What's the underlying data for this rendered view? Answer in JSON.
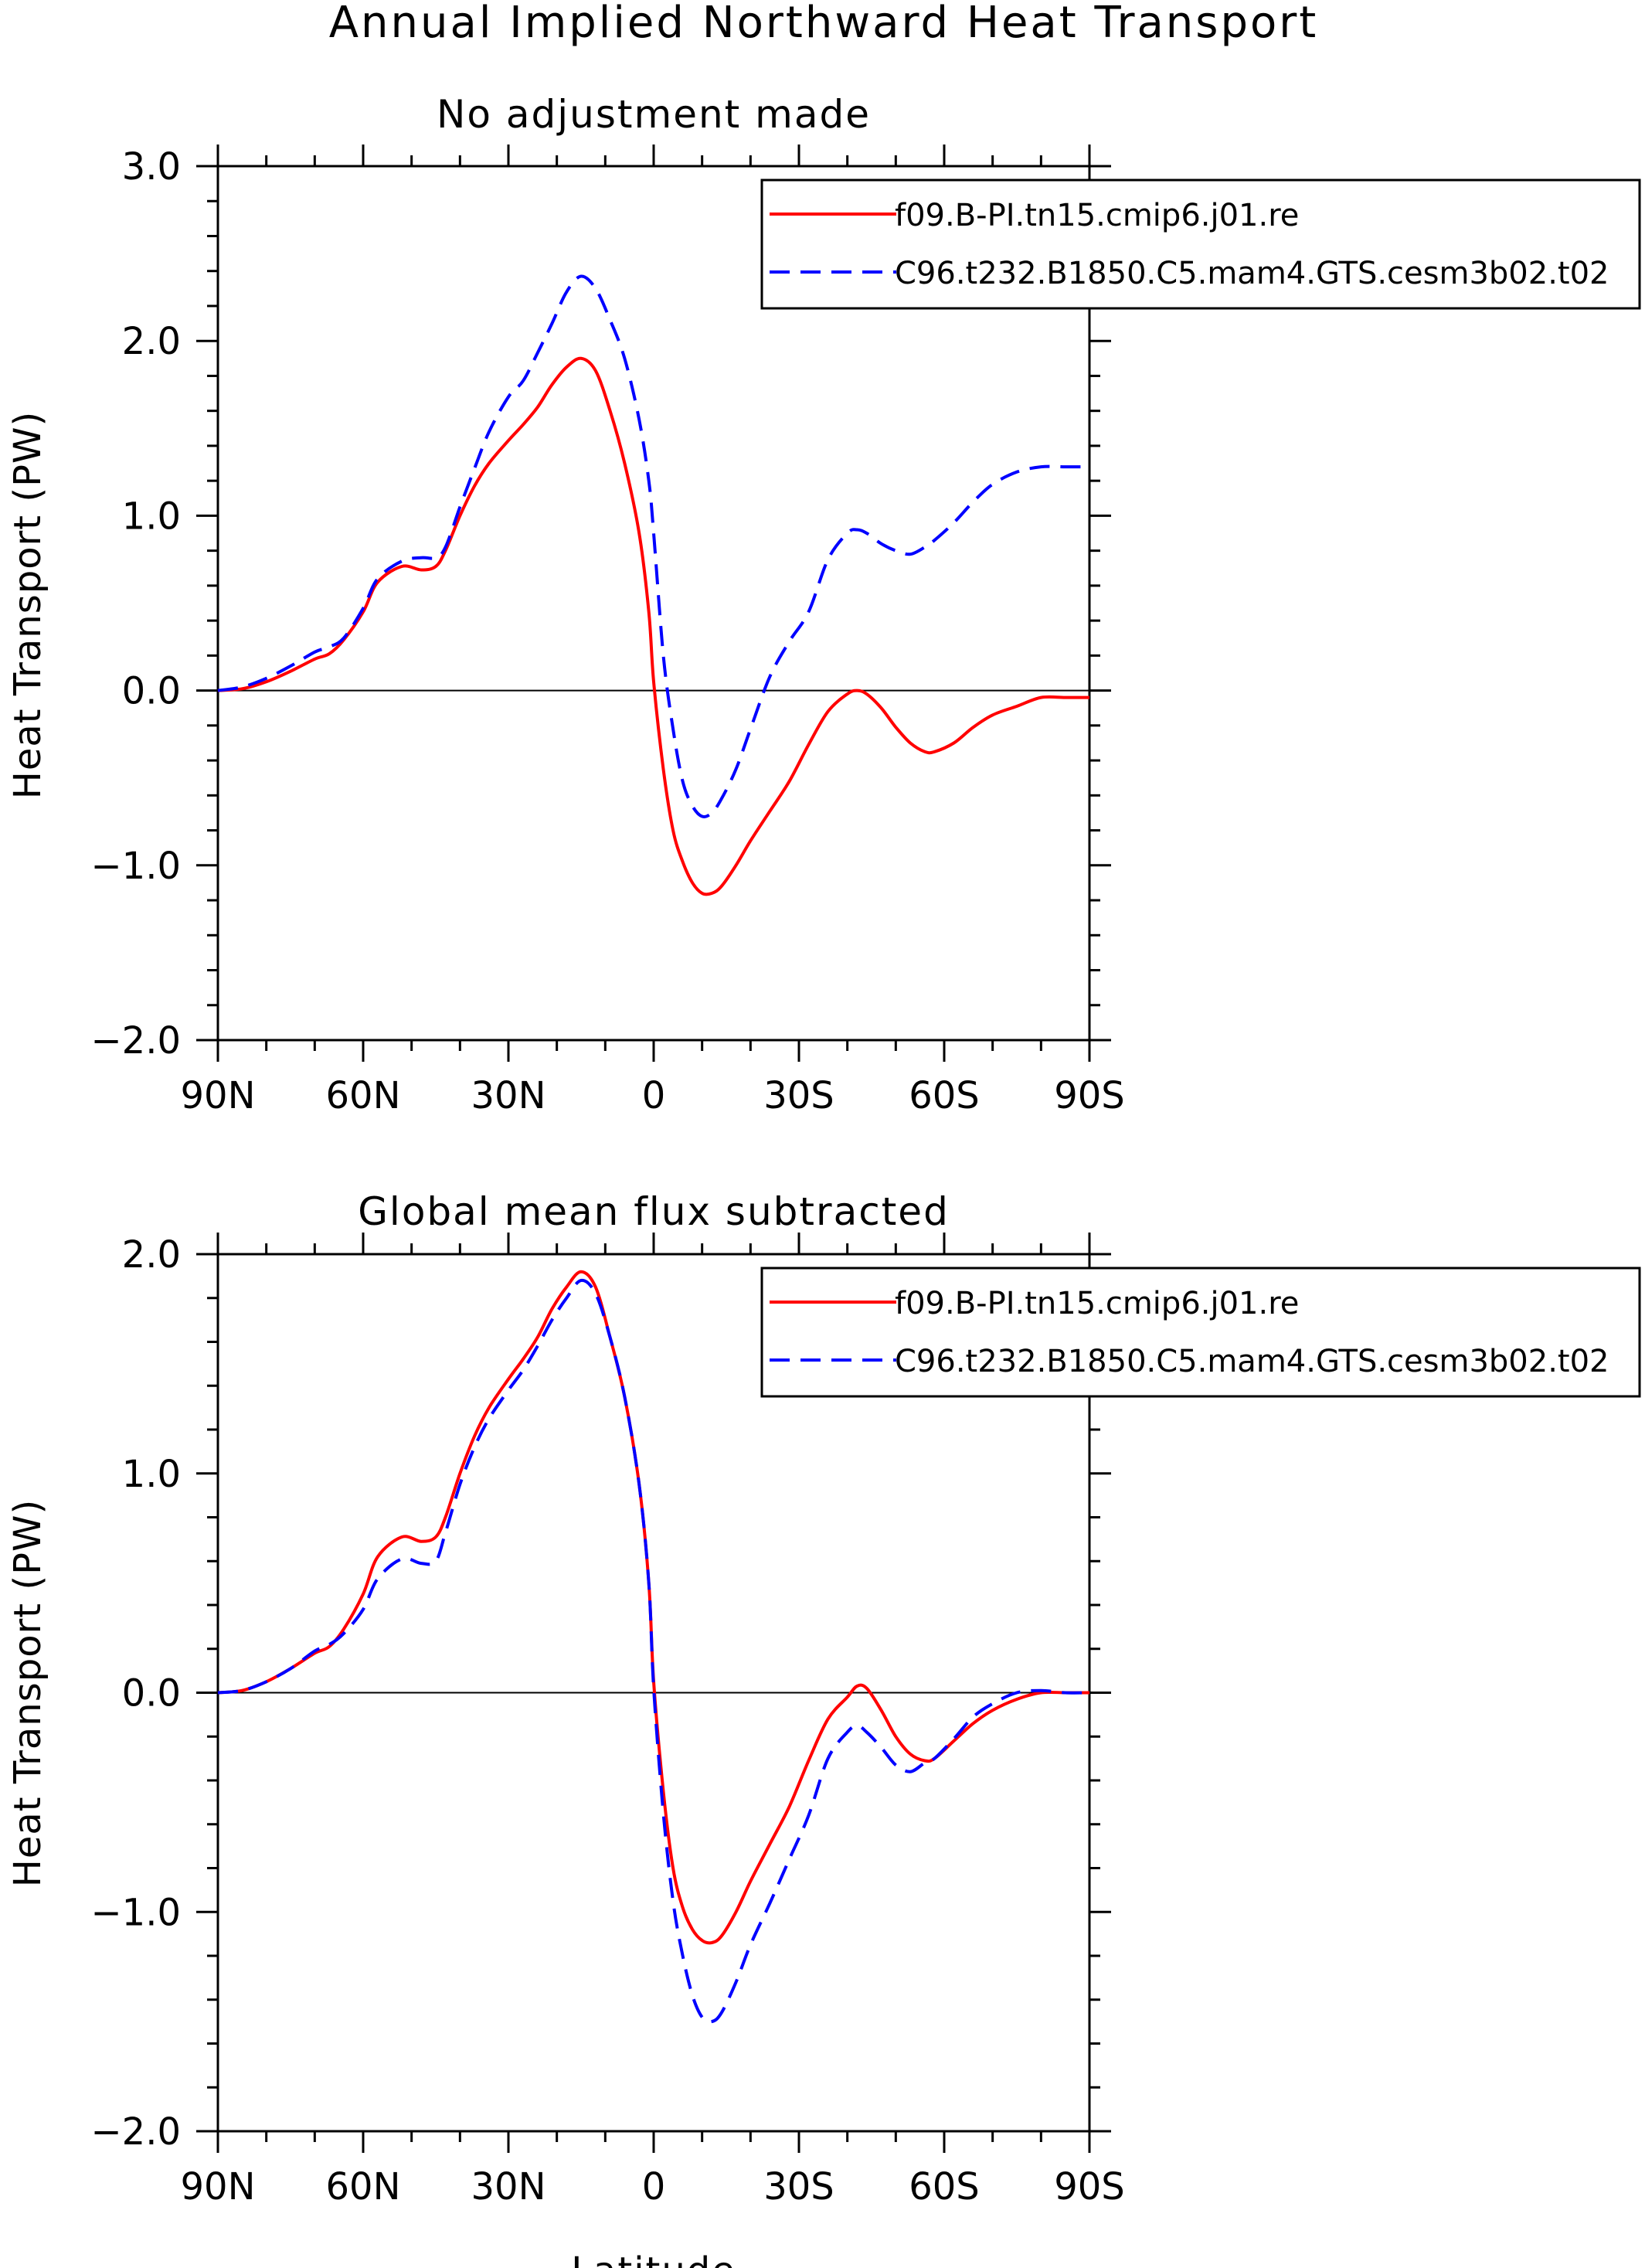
{
  "figure": {
    "title": "Annual Implied Northward Heat Transport"
  },
  "legend_entries": [
    {
      "name": "f09.B-PI.tn15.cmip6.j01.re",
      "color": "#ff0000",
      "dash": "solid"
    },
    {
      "name": "C96.t232.B1850.C5.mam4.GTS.cesm3b02.t02",
      "color": "#0000ff",
      "dash": "dashed"
    }
  ],
  "chart_data": [
    {
      "type": "line",
      "title": "No adjustment made",
      "xlabel": "",
      "ylabel": "Heat Transport (PW)",
      "xlim": [
        90,
        -90
      ],
      "ylim": [
        -2.0,
        3.0
      ],
      "xticks": [
        90,
        60,
        30,
        0,
        -30,
        -60,
        -90
      ],
      "xtick_labels": [
        "90N",
        "60N",
        "30N",
        "0",
        "30S",
        "60S",
        "90S"
      ],
      "yticks": [
        3.0,
        2.0,
        1.0,
        0.0,
        -1.0,
        -2.0
      ],
      "ytick_labels": [
        "3.0",
        "2.0",
        "1.0",
        "0.0",
        "−1.0",
        "−2.0"
      ],
      "zero_line": true,
      "legend": "top-right",
      "series": [
        {
          "name": "f09.B-PI.tn15.cmip6.j01.re",
          "x": [
            90,
            85,
            80,
            75,
            70,
            67,
            64,
            60,
            57,
            52,
            48,
            45,
            43,
            40,
            37,
            34,
            30,
            27,
            24,
            21,
            18,
            15,
            12,
            9,
            6,
            3,
            1,
            0,
            -2,
            -4,
            -6,
            -8,
            -10,
            -12,
            -14,
            -17,
            -20,
            -24,
            -28,
            -32,
            -36,
            -40,
            -42,
            -44,
            -47,
            -50,
            -53,
            -56,
            -58,
            -62,
            -66,
            -70,
            -75,
            -80,
            -85,
            -90
          ],
          "y": [
            0.0,
            0.01,
            0.05,
            0.11,
            0.18,
            0.21,
            0.29,
            0.45,
            0.62,
            0.71,
            0.69,
            0.71,
            0.8,
            1.0,
            1.17,
            1.3,
            1.43,
            1.52,
            1.62,
            1.75,
            1.85,
            1.9,
            1.83,
            1.6,
            1.3,
            0.9,
            0.45,
            0.05,
            -0.45,
            -0.8,
            -0.98,
            -1.1,
            -1.16,
            -1.16,
            -1.12,
            -1.0,
            -0.86,
            -0.69,
            -0.52,
            -0.31,
            -0.12,
            -0.02,
            0.0,
            -0.02,
            -0.1,
            -0.21,
            -0.3,
            -0.35,
            -0.35,
            -0.3,
            -0.21,
            -0.14,
            -0.09,
            -0.04,
            -0.04,
            -0.04
          ]
        },
        {
          "name": "C96.t232.B1850.C5.mam4.GTS.cesm3b02.t02",
          "x": [
            90,
            85,
            80,
            75,
            70,
            67,
            64,
            60,
            57,
            52,
            48,
            45,
            43,
            40,
            37,
            34,
            30,
            27,
            24,
            21,
            18,
            15,
            12,
            9,
            6,
            3,
            1,
            0,
            -2,
            -4,
            -6,
            -8,
            -10,
            -12,
            -14,
            -17,
            -20,
            -24,
            -28,
            -32,
            -36,
            -40,
            -42,
            -44,
            -47,
            -50,
            -53,
            -56,
            -58,
            -62,
            -66,
            -70,
            -75,
            -80,
            -85,
            -90
          ],
          "y": [
            0.0,
            0.02,
            0.07,
            0.14,
            0.22,
            0.25,
            0.3,
            0.47,
            0.64,
            0.74,
            0.76,
            0.76,
            0.82,
            1.05,
            1.27,
            1.48,
            1.68,
            1.77,
            1.93,
            2.1,
            2.28,
            2.37,
            2.3,
            2.12,
            1.9,
            1.55,
            1.2,
            0.9,
            0.2,
            -0.22,
            -0.52,
            -0.66,
            -0.72,
            -0.7,
            -0.62,
            -0.45,
            -0.22,
            0.08,
            0.28,
            0.45,
            0.75,
            0.9,
            0.92,
            0.9,
            0.84,
            0.8,
            0.78,
            0.82,
            0.86,
            0.96,
            1.08,
            1.18,
            1.25,
            1.28,
            1.28,
            1.28
          ]
        }
      ]
    },
    {
      "type": "line",
      "title": "Global mean flux subtracted",
      "xlabel": "Latitude",
      "ylabel": "Heat Transport (PW)",
      "xlim": [
        90,
        -90
      ],
      "ylim": [
        -2.0,
        2.0
      ],
      "xticks": [
        90,
        60,
        30,
        0,
        -30,
        -60,
        -90
      ],
      "xtick_labels": [
        "90N",
        "60N",
        "30N",
        "0",
        "30S",
        "60S",
        "90S"
      ],
      "yticks": [
        2.0,
        1.0,
        0.0,
        -1.0,
        -2.0
      ],
      "ytick_labels": [
        "2.0",
        "1.0",
        "0.0",
        "−1.0",
        "−2.0"
      ],
      "zero_line": true,
      "legend": "top-right",
      "series": [
        {
          "name": "f09.B-PI.tn15.cmip6.j01.re",
          "x": [
            90,
            85,
            80,
            75,
            70,
            67,
            64,
            60,
            57,
            52,
            48,
            45,
            43,
            40,
            37,
            34,
            30,
            27,
            24,
            21,
            18,
            15,
            12,
            9,
            6,
            3,
            1,
            0,
            -2,
            -4,
            -6,
            -8,
            -10,
            -12,
            -14,
            -17,
            -20,
            -24,
            -28,
            -32,
            -36,
            -40,
            -42,
            -44,
            -47,
            -50,
            -53,
            -56,
            -58,
            -62,
            -66,
            -70,
            -75,
            -80,
            -85,
            -90
          ],
          "y": [
            0.0,
            0.01,
            0.05,
            0.11,
            0.18,
            0.21,
            0.29,
            0.45,
            0.62,
            0.71,
            0.69,
            0.71,
            0.8,
            1.0,
            1.17,
            1.3,
            1.43,
            1.52,
            1.62,
            1.75,
            1.85,
            1.92,
            1.85,
            1.62,
            1.35,
            0.95,
            0.5,
            0.05,
            -0.45,
            -0.8,
            -0.98,
            -1.08,
            -1.13,
            -1.14,
            -1.11,
            -1.0,
            -0.86,
            -0.69,
            -0.52,
            -0.31,
            -0.12,
            -0.02,
            0.03,
            0.02,
            -0.08,
            -0.2,
            -0.28,
            -0.31,
            -0.3,
            -0.22,
            -0.14,
            -0.08,
            -0.03,
            0.0,
            0.0,
            0.0
          ]
        },
        {
          "name": "C96.t232.B1850.C5.mam4.GTS.cesm3b02.t02",
          "x": [
            90,
            85,
            80,
            75,
            70,
            67,
            64,
            60,
            57,
            52,
            48,
            45,
            43,
            40,
            37,
            34,
            30,
            27,
            24,
            21,
            18,
            15,
            12,
            9,
            6,
            3,
            1,
            0,
            -2,
            -4,
            -6,
            -8,
            -10,
            -12,
            -14,
            -17,
            -20,
            -24,
            -28,
            -32,
            -36,
            -40,
            -42,
            -44,
            -47,
            -50,
            -53,
            -56,
            -58,
            -62,
            -66,
            -70,
            -75,
            -80,
            -85,
            -90
          ],
          "y": [
            0.0,
            0.01,
            0.05,
            0.11,
            0.19,
            0.22,
            0.27,
            0.38,
            0.52,
            0.61,
            0.59,
            0.6,
            0.73,
            0.95,
            1.12,
            1.25,
            1.38,
            1.47,
            1.58,
            1.7,
            1.8,
            1.88,
            1.82,
            1.62,
            1.35,
            0.95,
            0.5,
            0.02,
            -0.55,
            -0.95,
            -1.2,
            -1.38,
            -1.48,
            -1.5,
            -1.46,
            -1.32,
            -1.15,
            -0.96,
            -0.76,
            -0.56,
            -0.3,
            -0.18,
            -0.15,
            -0.18,
            -0.25,
            -0.33,
            -0.36,
            -0.32,
            -0.3,
            -0.21,
            -0.11,
            -0.05,
            0.0,
            0.01,
            0.0,
            0.0
          ]
        }
      ]
    }
  ]
}
